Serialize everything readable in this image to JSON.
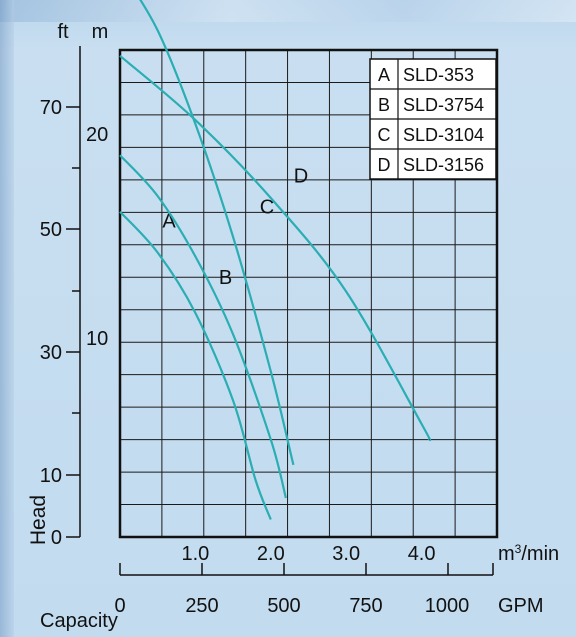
{
  "chart_data": {
    "type": "line",
    "title": "",
    "y_primary_unit": "ft",
    "y_secondary_unit": "m",
    "ylabel": "Head",
    "xlabel": "Capacity",
    "x_primary_unit": "m³/min",
    "x_secondary_unit": "GPM",
    "xlim": [
      0,
      5.0
    ],
    "ylim_m": [
      0,
      25
    ],
    "x_ticks_m3min": [
      "1.0",
      "2.0",
      "3.0",
      "4.0"
    ],
    "x_ticks_gpm": [
      "0",
      "250",
      "500",
      "750",
      "1000"
    ],
    "y_ticks_ft": [
      "70",
      "50",
      "30",
      "10",
      "0"
    ],
    "y_ticks_m": [
      "20",
      "10"
    ],
    "grid": true,
    "legend_position": "top-right",
    "legend": [
      {
        "key": "A",
        "model": "SLD-353"
      },
      {
        "key": "B",
        "model": "SLD-3754"
      },
      {
        "key": "C",
        "model": "SLD-3104"
      },
      {
        "key": "D",
        "model": "SLD-3156"
      }
    ],
    "series": [
      {
        "name": "A",
        "label_at": [
          0.65,
          15.9
        ],
        "x": [
          0,
          0.5,
          1.0,
          1.5,
          1.8,
          2.0
        ],
        "y": [
          16.7,
          14.6,
          11.5,
          7.0,
          2.9,
          0.9
        ]
      },
      {
        "name": "B",
        "label_at": [
          1.4,
          13.0
        ],
        "x": [
          0,
          0.5,
          1.0,
          1.5,
          2.0,
          2.2
        ],
        "y": [
          19.6,
          17.5,
          14.4,
          10.4,
          5.0,
          2.0
        ]
      },
      {
        "name": "C",
        "label_at": [
          1.95,
          16.6
        ],
        "x": [
          0,
          0.5,
          1.0,
          1.5,
          2.0,
          2.3
        ],
        "y": [
          29.2,
          26.0,
          21.2,
          15.4,
          8.5,
          3.7
        ]
      },
      {
        "name": "D",
        "label_at": [
          2.4,
          18.2
        ],
        "x": [
          0,
          1.0,
          2.0,
          3.0,
          4.0,
          4.1
        ],
        "y": [
          24.7,
          21.4,
          17.4,
          12.6,
          5.8,
          5.0
        ]
      }
    ],
    "colors": {
      "curve": "#2aaeb3",
      "grid": "#1a1a1a",
      "text": "#111111"
    }
  }
}
